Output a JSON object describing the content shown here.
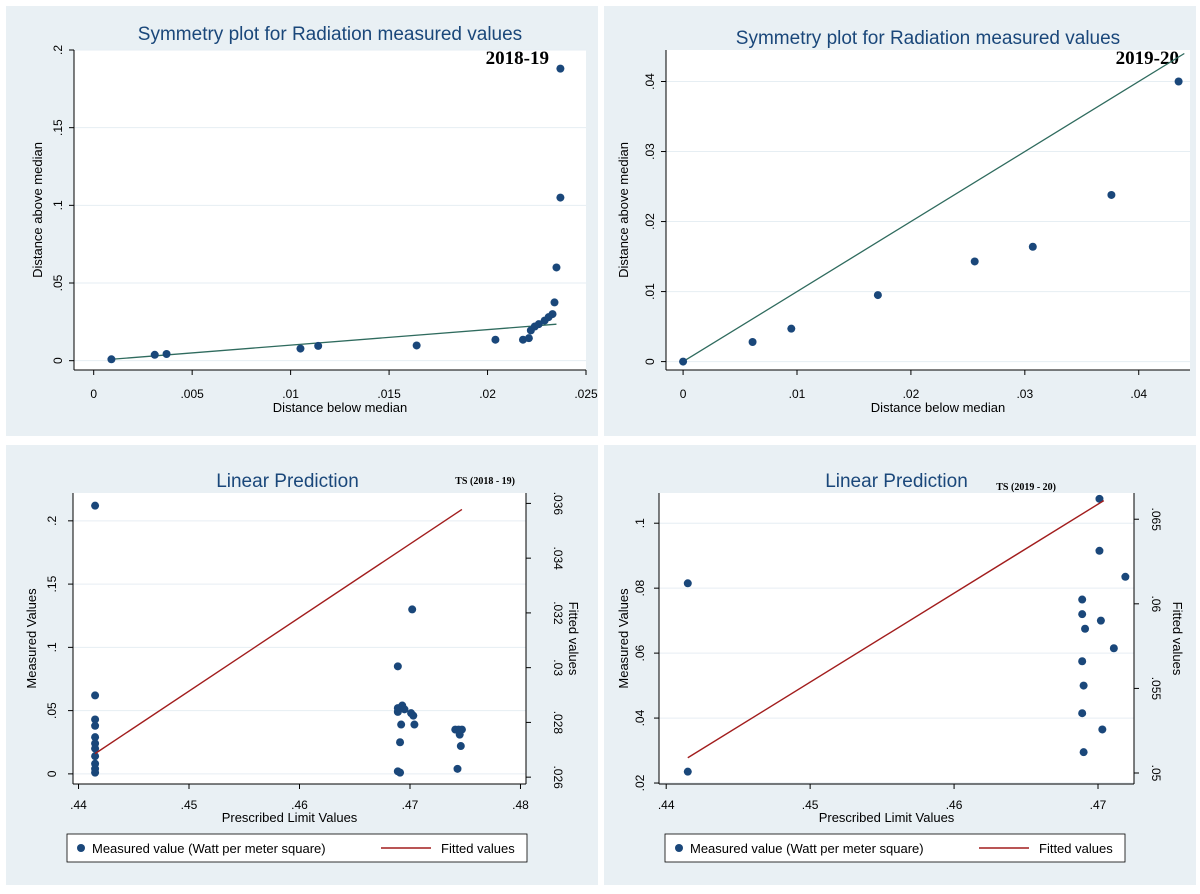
{
  "chart_data": [
    {
      "type": "scatter",
      "title": "Symmetry plot for Radiation measured values",
      "tag": "2018-19",
      "xlabel": "Distance below median",
      "ylabel": "Distance above median",
      "xlim": [
        -0.001,
        0.025
      ],
      "ylim": [
        -0.006,
        0.2
      ],
      "xticks": [
        0,
        0.005,
        0.01,
        0.015,
        0.02,
        0.025
      ],
      "xtick_labels": [
        "0",
        ".005",
        ".01",
        ".015",
        ".02",
        ".025"
      ],
      "yticks": [
        0,
        0.05,
        0.1,
        0.15,
        0.2
      ],
      "ytick_labels": [
        "0",
        ".05",
        ".1",
        ".15",
        ".2"
      ],
      "reference_line": {
        "x": [
          0.0009,
          0.0235
        ],
        "y": [
          0.0009,
          0.0235
        ]
      },
      "points": [
        [
          0.0009,
          0.0009
        ],
        [
          0.0031,
          0.0038
        ],
        [
          0.0037,
          0.0043
        ],
        [
          0.0105,
          0.0078
        ],
        [
          0.0114,
          0.0095
        ],
        [
          0.0164,
          0.0098
        ],
        [
          0.0204,
          0.0135
        ],
        [
          0.0218,
          0.0135
        ],
        [
          0.0221,
          0.0145
        ],
        [
          0.0222,
          0.0195
        ],
        [
          0.0224,
          0.022
        ],
        [
          0.0226,
          0.0235
        ],
        [
          0.0229,
          0.0258
        ],
        [
          0.0231,
          0.028
        ],
        [
          0.0233,
          0.03
        ],
        [
          0.0234,
          0.0375
        ],
        [
          0.0235,
          0.06
        ],
        [
          0.0237,
          0.105
        ],
        [
          0.0237,
          0.188
        ]
      ],
      "grid": true
    },
    {
      "type": "scatter",
      "title": "Symmetry plot for Radiation measured values",
      "tag": "2019-20",
      "xlabel": "Distance below median",
      "ylabel": "Distance above median",
      "xlim": [
        -0.0015,
        0.0445
      ],
      "ylim": [
        -0.0012,
        0.0445
      ],
      "xticks": [
        0,
        0.01,
        0.02,
        0.03,
        0.04
      ],
      "xtick_labels": [
        "0",
        ".01",
        ".02",
        ".03",
        ".04"
      ],
      "yticks": [
        0,
        0.01,
        0.02,
        0.03,
        0.04
      ],
      "ytick_labels": [
        "0",
        ".01",
        ".02",
        ".03",
        ".04"
      ],
      "reference_line": {
        "x": [
          0,
          0.044
        ],
        "y": [
          0,
          0.044
        ]
      },
      "points": [
        [
          0,
          0
        ],
        [
          0.0061,
          0.0028
        ],
        [
          0.0095,
          0.0047
        ],
        [
          0.0171,
          0.0095
        ],
        [
          0.0256,
          0.0143
        ],
        [
          0.0307,
          0.0164
        ],
        [
          0.0376,
          0.0238
        ],
        [
          0.0435,
          0.04
        ]
      ],
      "grid": true
    },
    {
      "type": "scatter",
      "title": "Linear Prediction",
      "tag": "TS (2018 - 19)",
      "xlabel": "Prescribed Limit Values",
      "ylabel": "Measured Values",
      "y2label": "Fitted values",
      "xlim": [
        0.4395,
        0.4805
      ],
      "ylim": [
        -0.008,
        0.222
      ],
      "y2lim": [
        0.02575,
        0.03638
      ],
      "xticks": [
        0.44,
        0.45,
        0.46,
        0.47,
        0.48
      ],
      "xtick_labels": [
        ".44",
        ".45",
        ".46",
        ".47",
        ".48"
      ],
      "yticks": [
        0,
        0.05,
        0.1,
        0.15,
        0.2
      ],
      "ytick_labels": [
        "0",
        ".05",
        ".1",
        ".15",
        ".2"
      ],
      "y2ticks": [
        0.026,
        0.028,
        0.03,
        0.032,
        0.034,
        0.036
      ],
      "y2tick_labels": [
        ".026",
        ".028",
        ".03",
        ".032",
        ".034",
        ".036"
      ],
      "series": [
        {
          "name": "Measured value (Watt per meter square)",
          "kind": "scatter",
          "axis": "left",
          "color": "#1a477a",
          "points": [
            [
              0.4415,
              0.212
            ],
            [
              0.4415,
              0.062
            ],
            [
              0.4415,
              0.043
            ],
            [
              0.4415,
              0.038
            ],
            [
              0.4415,
              0.029
            ],
            [
              0.4415,
              0.024
            ],
            [
              0.4415,
              0.02
            ],
            [
              0.4415,
              0.014
            ],
            [
              0.4415,
              0.008
            ],
            [
              0.4415,
              0.004
            ],
            [
              0.4415,
              0.001
            ],
            [
              0.4689,
              0.085
            ],
            [
              0.4689,
              0.052
            ],
            [
              0.4689,
              0.049
            ],
            [
              0.4693,
              0.054
            ],
            [
              0.4695,
              0.051
            ],
            [
              0.4692,
              0.039
            ],
            [
              0.4691,
              0.025
            ],
            [
              0.4689,
              0.002
            ],
            [
              0.4691,
              0.001
            ],
            [
              0.4702,
              0.13
            ],
            [
              0.4701,
              0.048
            ],
            [
              0.4703,
              0.046
            ],
            [
              0.4704,
              0.039
            ],
            [
              0.4741,
              0.035
            ],
            [
              0.4744,
              0.035
            ],
            [
              0.4747,
              0.035
            ],
            [
              0.4745,
              0.031
            ],
            [
              0.4746,
              0.022
            ],
            [
              0.4743,
              0.004
            ]
          ]
        },
        {
          "name": "Fitted values",
          "kind": "line",
          "axis": "right",
          "color": "#a21d1d",
          "points": [
            [
              0.4415,
              0.02686
            ],
            [
              0.4747,
              0.03578
            ]
          ]
        }
      ],
      "legend": "bottom"
    },
    {
      "type": "scatter",
      "title": "Linear Prediction",
      "tag": "TS (2019 - 20)",
      "xlabel": "Prescribed Limit Values",
      "ylabel": "Measured Values",
      "y2label": "Fitted values",
      "xlim": [
        0.4395,
        0.4725
      ],
      "ylim": [
        0.0197,
        0.1093
      ],
      "y2lim": [
        0.04935,
        0.06655
      ],
      "xticks": [
        0.44,
        0.45,
        0.46,
        0.47
      ],
      "xtick_labels": [
        ".44",
        ".45",
        ".46",
        ".47"
      ],
      "yticks": [
        0.02,
        0.04,
        0.06,
        0.08,
        0.1
      ],
      "ytick_labels": [
        ".02",
        ".04",
        ".06",
        ".08",
        ".1"
      ],
      "y2ticks": [
        0.05,
        0.055,
        0.06,
        0.065
      ],
      "y2tick_labels": [
        ".05",
        ".055",
        ".06",
        ".065"
      ],
      "series": [
        {
          "name": "Measured value (Watt per meter square)",
          "kind": "scatter",
          "axis": "left",
          "color": "#1a477a",
          "points": [
            [
              0.4415,
              0.0815
            ],
            [
              0.4415,
              0.0235
            ],
            [
              0.4689,
              0.0765
            ],
            [
              0.4689,
              0.072
            ],
            [
              0.4691,
              0.0675
            ],
            [
              0.4689,
              0.0575
            ],
            [
              0.469,
              0.05
            ],
            [
              0.4689,
              0.0415
            ],
            [
              0.469,
              0.0295
            ],
            [
              0.4701,
              0.1075
            ],
            [
              0.4701,
              0.0915
            ],
            [
              0.4702,
              0.07
            ],
            [
              0.4703,
              0.0365
            ],
            [
              0.4711,
              0.0615
            ],
            [
              0.4719,
              0.0835
            ]
          ]
        },
        {
          "name": "Fitted values",
          "kind": "line",
          "axis": "right",
          "color": "#a21d1d",
          "points": [
            [
              0.4415,
              0.0509
            ],
            [
              0.4704,
              0.0661
            ]
          ]
        }
      ],
      "legend": "bottom"
    }
  ]
}
